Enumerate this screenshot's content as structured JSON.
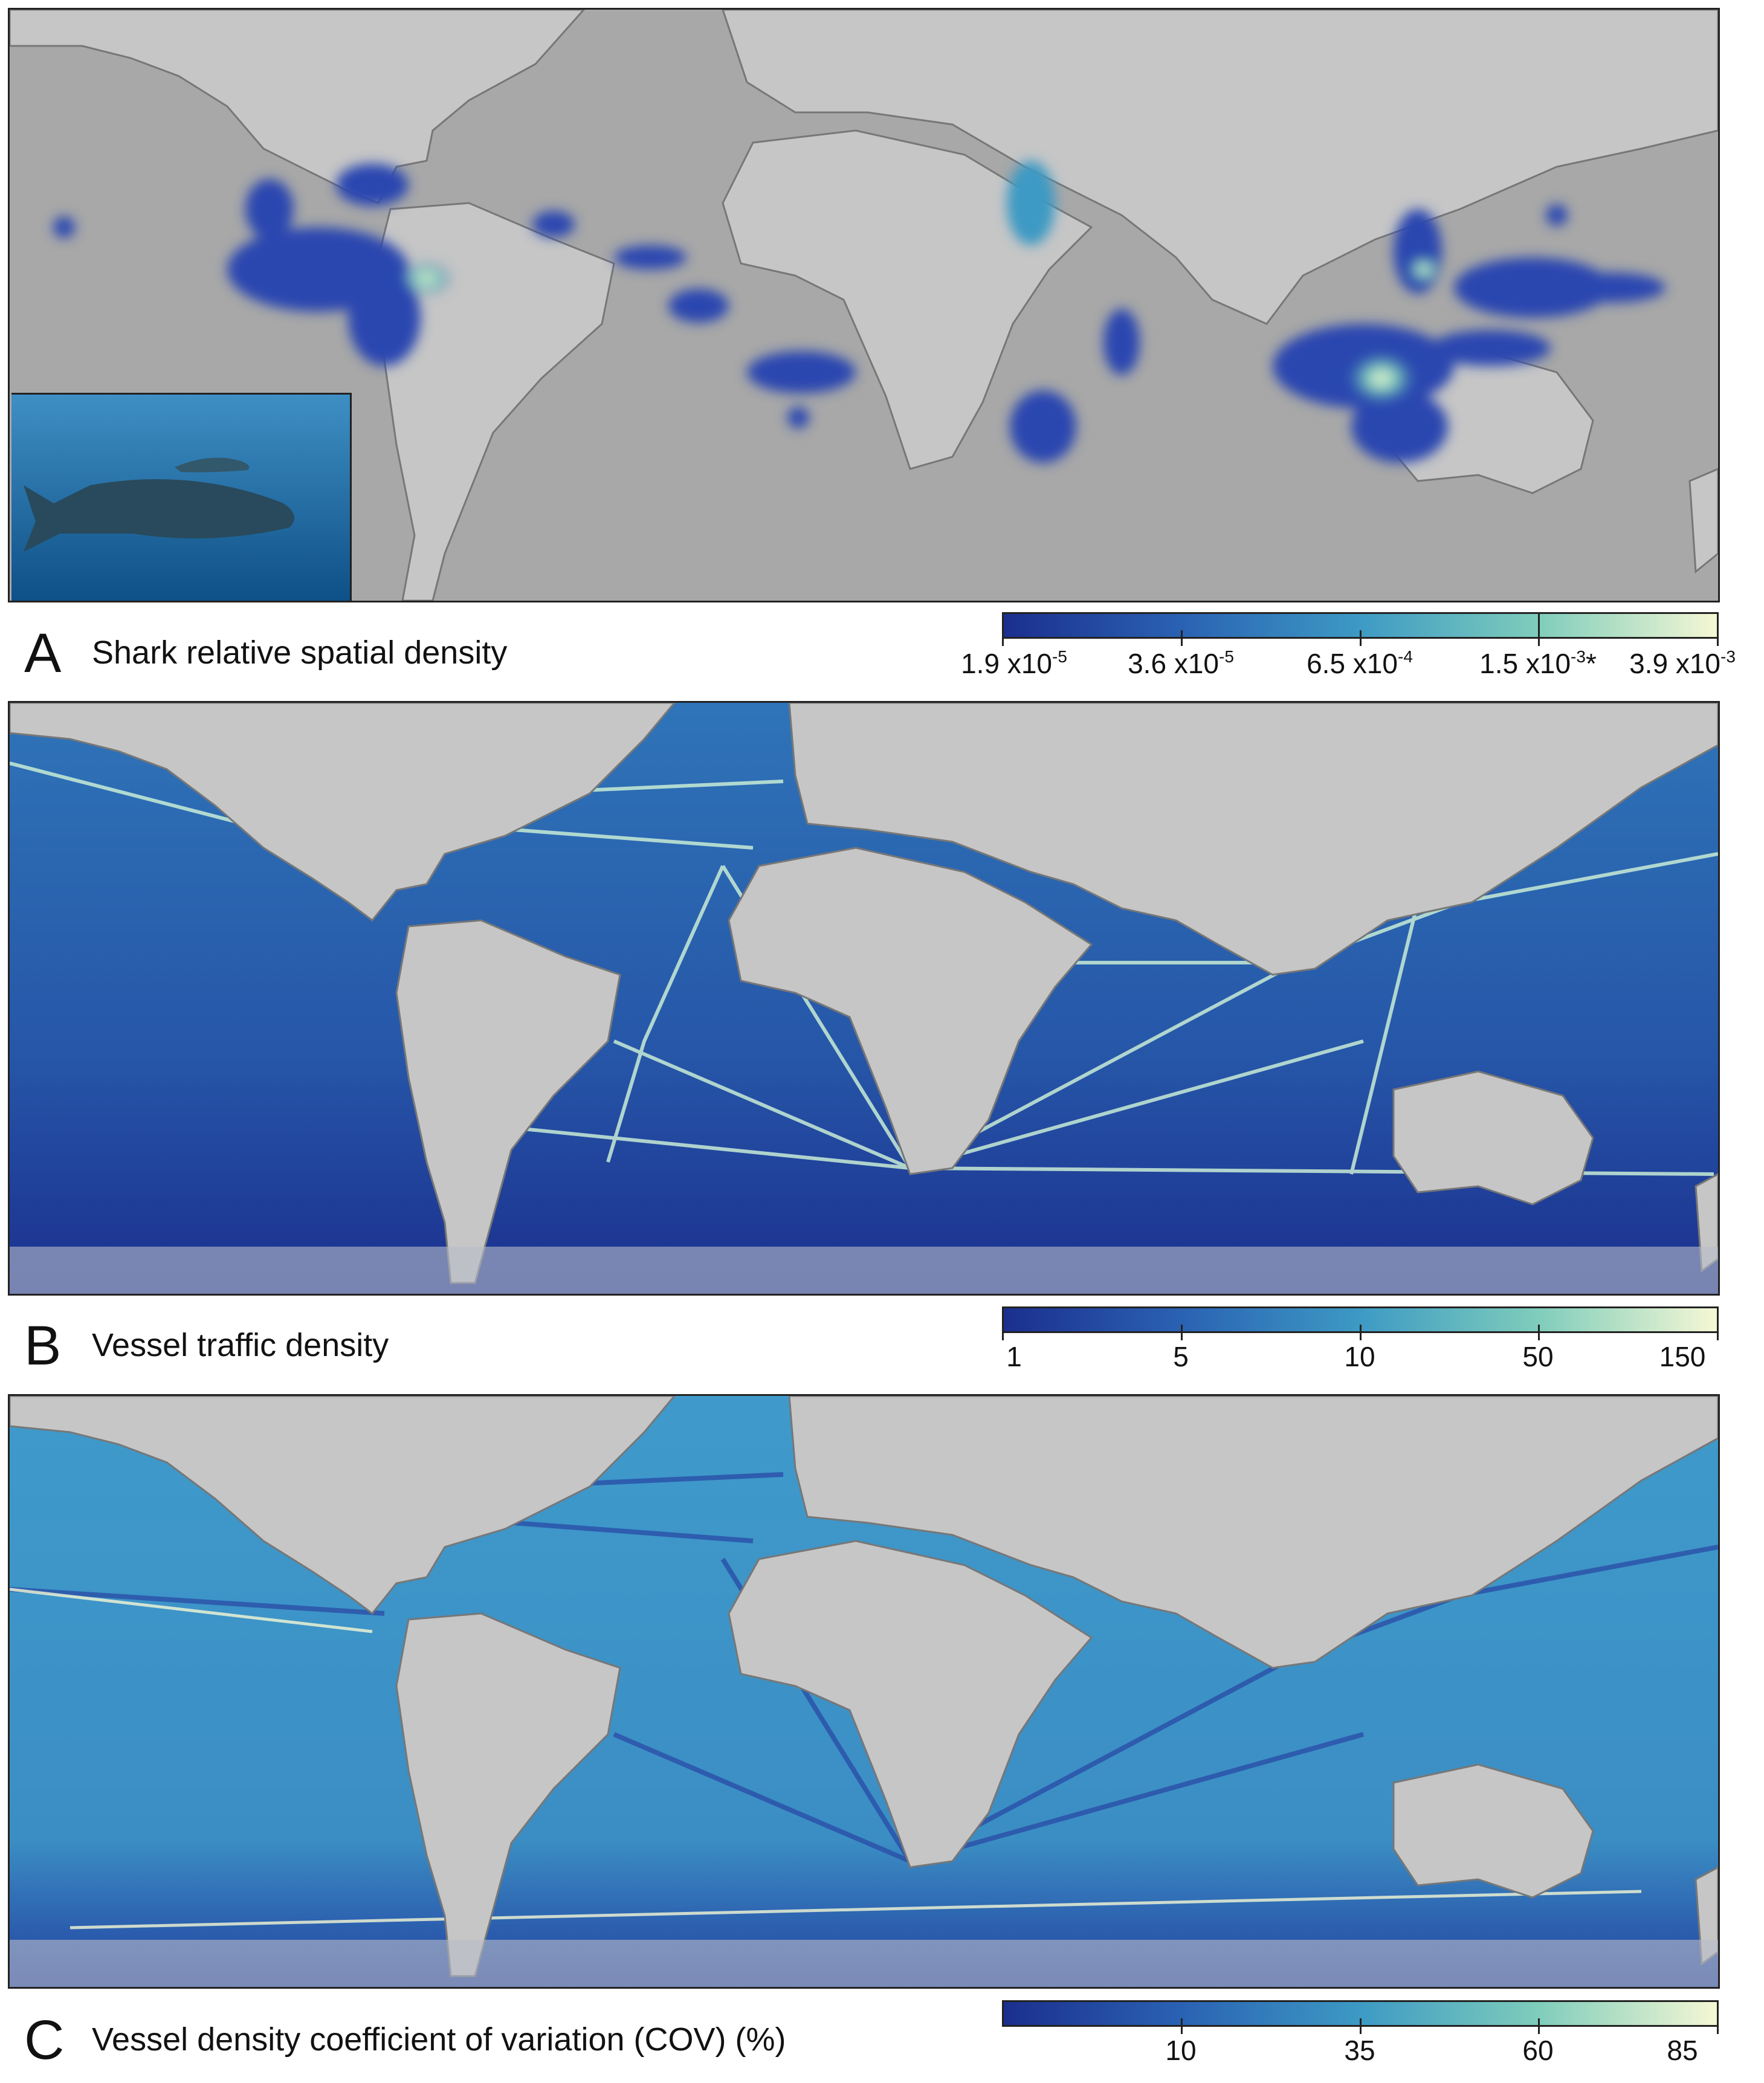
{
  "panels": [
    {
      "letter": "A",
      "caption": "Shark relative spatial density",
      "colorbar": {
        "ticks": [
          {
            "base": "1.9 x10",
            "exp": "-5",
            "suffix": ""
          },
          {
            "base": "3.6 x10",
            "exp": "-5",
            "suffix": ""
          },
          {
            "base": "6.5 x10",
            "exp": "-4",
            "suffix": ""
          },
          {
            "base": "1.5 x10",
            "exp": "-3",
            "suffix": "*"
          },
          {
            "base": "3.9 x10",
            "exp": "-3",
            "suffix": ""
          }
        ],
        "tick_fractions": [
          0.0,
          0.25,
          0.5,
          0.75,
          1.0
        ],
        "marker_fraction": 0.75
      }
    },
    {
      "letter": "B",
      "caption": "Vessel traffic density",
      "colorbar": {
        "ticks": [
          {
            "base": "1",
            "exp": "",
            "suffix": ""
          },
          {
            "base": "5",
            "exp": "",
            "suffix": ""
          },
          {
            "base": "10",
            "exp": "",
            "suffix": ""
          },
          {
            "base": "50",
            "exp": "",
            "suffix": ""
          },
          {
            "base": "150",
            "exp": "",
            "suffix": ""
          }
        ],
        "tick_fractions": [
          0.0,
          0.25,
          0.5,
          0.75,
          1.0
        ]
      }
    },
    {
      "letter": "C",
      "caption": "Vessel density coefficient of variation (COV) (%)",
      "colorbar": {
        "ticks": [
          {
            "base": "10",
            "exp": "",
            "suffix": ""
          },
          {
            "base": "35",
            "exp": "",
            "suffix": ""
          },
          {
            "base": "60",
            "exp": "",
            "suffix": ""
          },
          {
            "base": "85",
            "exp": "",
            "suffix": ""
          }
        ],
        "tick_fractions": [
          0.25,
          0.5,
          0.75,
          1.0
        ]
      }
    }
  ],
  "colors": {
    "land": "#c4c4c4",
    "ocean_gray": "#a9a9a9",
    "ramp": [
      "#1b2f8e",
      "#2a62b3",
      "#3d9ac4",
      "#7fcdbb",
      "#f5f7d4"
    ]
  }
}
